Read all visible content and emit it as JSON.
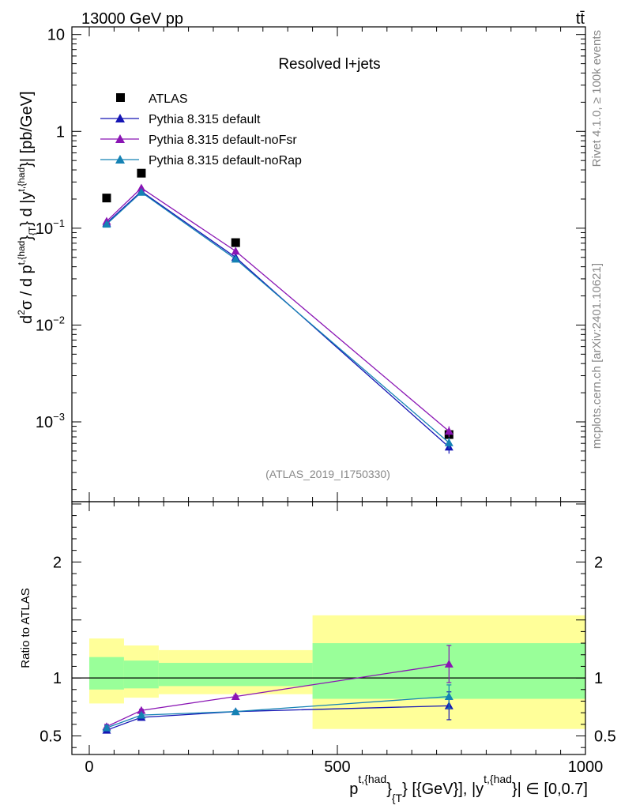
{
  "header": {
    "energy_label": "13000 GeV pp",
    "process_label": "tt̄"
  },
  "side_labels": {
    "rivet": "Rivet 4.1.0, ≥ 100k events",
    "mcplots": "mcplots.cern.ch [arXiv:2401.10621]"
  },
  "colors": {
    "data": "#000000",
    "default": "#1515b4",
    "noFsr": "#8a15b4",
    "noRap": "#1582b4",
    "band_inner": "#99ff99",
    "band_outer": "#ffff99"
  },
  "chart_data": [
    {
      "type": "line",
      "panel": "main",
      "title": "Resolved l+jets",
      "analysis_tag": "(ATLAS_2019_I1750330)",
      "yscale": "log",
      "ylim": [
        0.00015,
        12
      ],
      "xlim": [
        -35,
        1000
      ],
      "ylabel": "d²σ / d p^{t,{had}}_{T}} d |y^{t,{had}}| [pb/GeV]",
      "ytick_labels": [
        {
          "value": 0.001,
          "base": "10",
          "exp": "−3"
        },
        {
          "value": 0.01,
          "base": "10",
          "exp": "−2"
        },
        {
          "value": 0.1,
          "base": "10",
          "exp": "−1"
        },
        {
          "value": 1,
          "label": "1"
        },
        {
          "value": 10,
          "label": "10"
        }
      ],
      "legend": [
        "ATLAS",
        "Pythia 8.315 default",
        "Pythia 8.315 default-noFsr",
        "Pythia 8.315 default-noRap"
      ],
      "series": [
        {
          "name": "ATLAS",
          "marker": "square",
          "x": [
            35,
            105,
            295,
            725
          ],
          "values": [
            0.205,
            0.37,
            0.071,
            0.00074
          ]
        },
        {
          "name": "Pythia 8.315 default",
          "marker": "triangle",
          "x": [
            35,
            105,
            295,
            725
          ],
          "values": [
            0.113,
            0.24,
            0.05,
            0.00055
          ],
          "err": [
            0,
            0,
            0,
            8e-05
          ]
        },
        {
          "name": "Pythia 8.315 default-noFsr",
          "marker": "triangle",
          "x": [
            35,
            105,
            295,
            725
          ],
          "values": [
            0.118,
            0.26,
            0.058,
            0.0008
          ],
          "err": [
            0,
            0,
            0,
            0.0001
          ]
        },
        {
          "name": "Pythia 8.315 default-noRap",
          "marker": "triangle",
          "x": [
            35,
            105,
            295,
            725
          ],
          "values": [
            0.11,
            0.235,
            0.048,
            0.00061
          ],
          "err": [
            0,
            0,
            0,
            8e-05
          ]
        }
      ]
    },
    {
      "type": "line",
      "panel": "ratio",
      "ylabel": "Ratio to ATLAS",
      "ylim": [
        0.34,
        2.52
      ],
      "xlim": [
        -35,
        1000
      ],
      "xlabel": "p^{t,{had}}_{T}} [{GeV}], |y^{t,{had}}| ∈ [0,0.7]",
      "xtick_labels": [
        0,
        500,
        1000
      ],
      "ytick_labels": [
        0.5,
        1,
        2
      ],
      "bands": {
        "edges": [
          0,
          70,
          140,
          450,
          1000
        ],
        "inner_low": [
          0.9,
          0.91,
          0.93,
          0.82
        ],
        "inner_high": [
          1.18,
          1.15,
          1.13,
          1.3
        ],
        "outer_low": [
          0.78,
          0.83,
          0.86,
          0.56
        ],
        "outer_high": [
          1.34,
          1.28,
          1.24,
          1.54
        ]
      },
      "series": [
        {
          "name": "Pythia 8.315 default",
          "x": [
            35,
            105,
            295,
            725
          ],
          "values": [
            0.55,
            0.66,
            0.71,
            0.76
          ],
          "err": [
            0.02,
            0.01,
            0.01,
            0.12
          ]
        },
        {
          "name": "Pythia 8.315 default-noFsr",
          "x": [
            35,
            105,
            295,
            725
          ],
          "values": [
            0.58,
            0.72,
            0.84,
            1.12
          ],
          "err": [
            0.02,
            0.01,
            0.01,
            0.16
          ]
        },
        {
          "name": "Pythia 8.315 default-noRap",
          "x": [
            35,
            105,
            295,
            725
          ],
          "values": [
            0.57,
            0.68,
            0.71,
            0.84
          ],
          "err": [
            0.02,
            0.01,
            0.01,
            0.1
          ]
        }
      ]
    }
  ]
}
